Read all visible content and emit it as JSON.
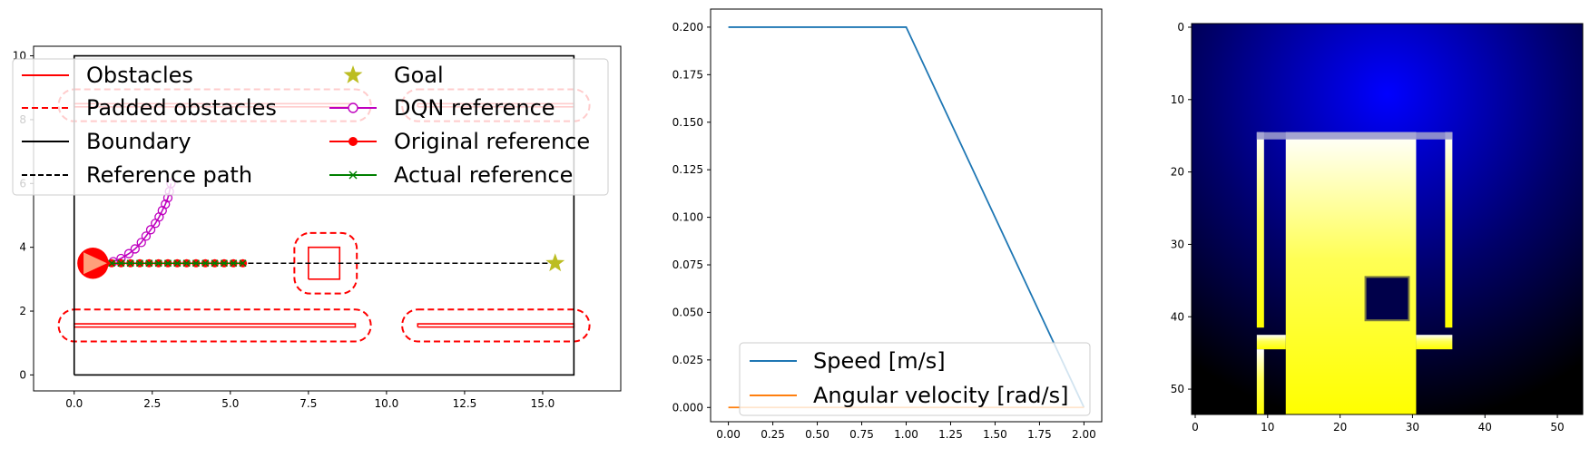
{
  "chart_data": [
    {
      "type": "line",
      "title": "",
      "xlabel": "",
      "ylabel": "",
      "xlim": [
        -1.3,
        17.5
      ],
      "ylim": [
        -0.5,
        10.3
      ],
      "xticks": [
        0.0,
        2.5,
        5.0,
        7.5,
        10.0,
        12.5,
        15.0
      ],
      "xtick_labels": [
        "0.0",
        "2.5",
        "5.0",
        "7.5",
        "10.0",
        "12.5",
        "15.0"
      ],
      "yticks": [
        0,
        2,
        4,
        6,
        8,
        10
      ],
      "ytick_labels": [
        "0",
        "2",
        "4",
        "6",
        "8",
        "10"
      ],
      "legend_placement": "top-left",
      "legend": [
        "Obstacles",
        "Padded obstacles",
        "Boundary",
        "Reference path",
        "Goal",
        "DQN reference",
        "Original reference",
        "Actual reference"
      ],
      "boundary": {
        "name": "Boundary",
        "color": "#000000",
        "x": [
          0,
          16,
          16,
          0,
          0
        ],
        "y": [
          0,
          0,
          10,
          10,
          0
        ]
      },
      "obstacles": [
        {
          "name": "Obstacles",
          "x": [
            0,
            9,
            9,
            0,
            0
          ],
          "y": [
            1.5,
            1.5,
            1.6,
            1.6,
            1.5
          ]
        },
        {
          "name": "Obstacles",
          "x": [
            11,
            16,
            16,
            11,
            11
          ],
          "y": [
            1.5,
            1.5,
            1.6,
            1.6,
            1.5
          ]
        },
        {
          "name": "Obstacles",
          "x": [
            0,
            9,
            9,
            0,
            0
          ],
          "y": [
            8.4,
            8.4,
            8.5,
            8.5,
            8.4
          ]
        },
        {
          "name": "Obstacles",
          "x": [
            11,
            16,
            16,
            11,
            11
          ],
          "y": [
            8.4,
            8.4,
            8.5,
            8.5,
            8.4
          ]
        },
        {
          "name": "Obstacles",
          "x": [
            7.5,
            8.5,
            8.5,
            7.5,
            7.5
          ],
          "y": [
            3.0,
            3.0,
            4.0,
            4.0,
            3.0
          ]
        }
      ],
      "padded_obstacles": [
        {
          "x0": -0.5,
          "x1": 9.5,
          "y0": 1.05,
          "y1": 2.05,
          "radius": 0.5
        },
        {
          "x0": 10.5,
          "x1": 16.5,
          "y0": 1.05,
          "y1": 2.05,
          "radius": 0.5
        },
        {
          "x0": -0.5,
          "x1": 9.5,
          "y0": 7.95,
          "y1": 8.95,
          "radius": 0.5
        },
        {
          "x0": 10.5,
          "x1": 16.5,
          "y0": 7.95,
          "y1": 8.95,
          "radius": 0.5
        },
        {
          "x0": 7.05,
          "x1": 9.05,
          "y0": 2.55,
          "y1": 4.45,
          "radius": 0.5
        }
      ],
      "reference_path": {
        "name": "Reference path",
        "x": [
          0.6,
          15.4
        ],
        "y": [
          3.5,
          3.5
        ]
      },
      "goal": {
        "name": "Goal",
        "x": 15.4,
        "y": 3.5,
        "color": "#bcbd22"
      },
      "robot": {
        "x": 0.6,
        "y": 3.5,
        "radius": 0.5,
        "color": "#ff0000"
      },
      "dqn_reference": {
        "name": "DQN reference",
        "color": "#bf00bf",
        "x": [
          1.25,
          1.5,
          1.75,
          1.95,
          2.15,
          2.3,
          2.45,
          2.6,
          2.72,
          2.82,
          2.92,
          3.0,
          3.05,
          3.1
        ],
        "y": [
          3.55,
          3.65,
          3.8,
          3.95,
          4.15,
          4.35,
          4.55,
          4.75,
          4.95,
          5.15,
          5.35,
          5.55,
          5.75,
          6.0
        ]
      },
      "original_reference": {
        "name": "Original reference",
        "color": "#ff0000",
        "x": [
          1.2,
          1.5,
          1.8,
          2.1,
          2.4,
          2.7,
          3.0,
          3.3,
          3.6,
          3.9,
          4.2,
          4.5,
          4.8,
          5.1,
          5.4
        ],
        "y": [
          3.5,
          3.5,
          3.5,
          3.5,
          3.5,
          3.5,
          3.5,
          3.5,
          3.5,
          3.5,
          3.5,
          3.5,
          3.5,
          3.5,
          3.5
        ]
      },
      "actual_reference": {
        "name": "Actual reference",
        "color": "#008000",
        "x": [
          1.2,
          1.5,
          1.8,
          2.1,
          2.4,
          2.7,
          3.0,
          3.3,
          3.6,
          3.9,
          4.2,
          4.5,
          4.8,
          5.1,
          5.4
        ],
        "y": [
          3.5,
          3.5,
          3.5,
          3.5,
          3.5,
          3.5,
          3.5,
          3.5,
          3.5,
          3.5,
          3.5,
          3.5,
          3.5,
          3.5,
          3.5
        ]
      }
    },
    {
      "type": "line",
      "title": "",
      "xlabel": "",
      "ylabel": "",
      "xlim": [
        -0.1,
        2.1
      ],
      "ylim": [
        -0.0075,
        0.2095
      ],
      "xticks": [
        0.0,
        0.25,
        0.5,
        0.75,
        1.0,
        1.25,
        1.5,
        1.75,
        2.0
      ],
      "xtick_labels": [
        "0.00",
        "0.25",
        "0.50",
        "0.75",
        "1.00",
        "1.25",
        "1.50",
        "1.75",
        "2.00"
      ],
      "yticks": [
        0.0,
        0.025,
        0.05,
        0.075,
        0.1,
        0.125,
        0.15,
        0.175,
        0.2
      ],
      "ytick_labels": [
        "0.000",
        "0.025",
        "0.050",
        "0.075",
        "0.100",
        "0.125",
        "0.150",
        "0.175",
        "0.200"
      ],
      "legend_placement": "bottom-right",
      "series": [
        {
          "name": "Speed [m/s]",
          "color": "#1f77b4",
          "x": [
            0.0,
            1.0,
            2.0
          ],
          "y": [
            0.2,
            0.2,
            0.0
          ]
        },
        {
          "name": "Angular velocity [rad/s]",
          "color": "#ff7f0e",
          "x": [
            0.0,
            2.0
          ],
          "y": [
            0.0,
            0.0
          ]
        }
      ]
    },
    {
      "type": "heatmap",
      "title": "",
      "xlabel": "",
      "ylabel": "",
      "grid_size": [
        54,
        54
      ],
      "xticks": [
        0,
        10,
        20,
        30,
        40,
        50
      ],
      "xtick_labels": [
        "0",
        "10",
        "20",
        "30",
        "40",
        "50"
      ],
      "yticks": [
        0,
        10,
        20,
        30,
        40,
        50
      ],
      "ytick_labels": [
        "0",
        "10",
        "20",
        "30",
        "40",
        "50"
      ],
      "description_values": {
        "background_gradient_top_center": "#0000ff",
        "background_corners": "#000000",
        "free_space_top": "#ffffff",
        "free_space_bottom": "#ffff00"
      },
      "free_regions": [
        {
          "x0": 9,
          "x1": 10,
          "y0": 15,
          "y1": 42
        },
        {
          "x0": 13,
          "x1": 31,
          "y0": 15,
          "y1": 54
        },
        {
          "x0": 35,
          "x1": 36,
          "y0": 15,
          "y1": 42
        },
        {
          "x0": 9,
          "x1": 13,
          "y0": 43,
          "y1": 45
        },
        {
          "x0": 31,
          "x1": 36,
          "y0": 43,
          "y1": 45
        },
        {
          "x0": 9,
          "x1": 10,
          "y0": 45,
          "y1": 54
        }
      ],
      "blocked_regions": [
        {
          "x0": 24,
          "x1": 30,
          "y0": 35,
          "y1": 41
        }
      ]
    }
  ]
}
